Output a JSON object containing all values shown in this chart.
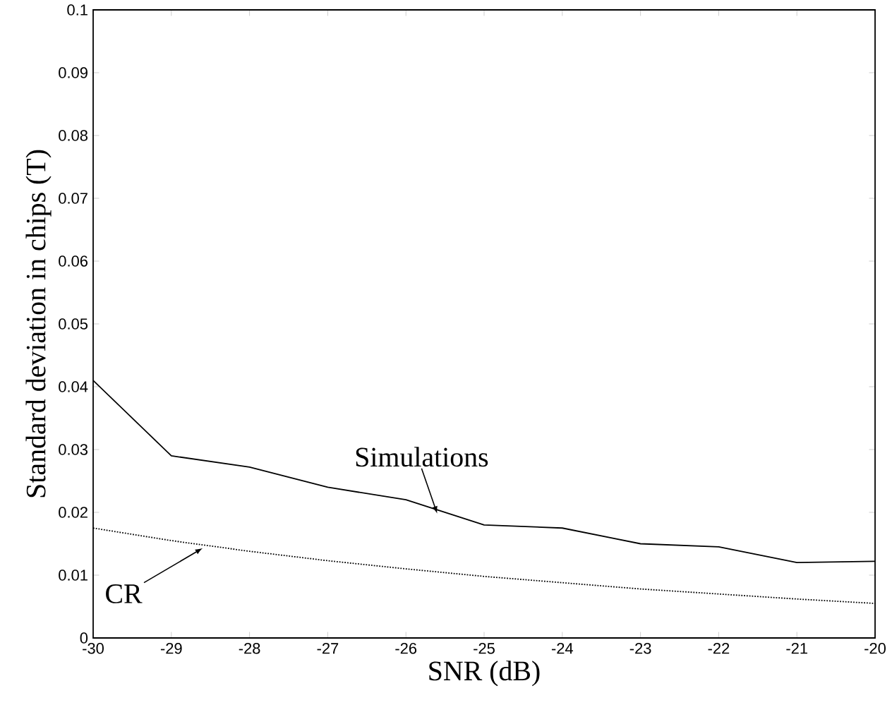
{
  "chart_data": {
    "type": "line",
    "xlabel": "SNR (dB)",
    "ylabel": "Standard deviation in chips (T)",
    "x": [
      -30,
      -29,
      -28,
      -27,
      -26,
      -25,
      -24,
      -23,
      -22,
      -21,
      -20
    ],
    "series": [
      {
        "color": "#000000",
        "line_style": "solid",
        "values": [
          0.041,
          0.029,
          0.0272,
          0.024,
          0.022,
          0.018,
          0.0175,
          0.015,
          0.0145,
          0.012,
          0.0122
        ]
      },
      {
        "color": "#000000",
        "line_style": "dotted",
        "values": [
          0.0175,
          0.0155,
          0.0138,
          0.0123,
          0.011,
          0.0098,
          0.0088,
          0.0078,
          0.007,
          0.0062,
          0.0055
        ]
      }
    ],
    "annotations": [
      {
        "text": "Simulations",
        "x": -25.6,
        "y": 0.0198
      },
      {
        "text": "CR",
        "x": -28.6,
        "y": 0.0143
      }
    ],
    "xlim": [
      -30,
      -20
    ],
    "ylim": [
      0,
      0.1
    ],
    "xticks": [
      -30,
      -29,
      -28,
      -27,
      -26,
      -25,
      -24,
      -23,
      -22,
      -21,
      -20
    ],
    "yticks": [
      0,
      0.01,
      0.02,
      0.03,
      0.04,
      0.05,
      0.06,
      0.07,
      0.08,
      0.09,
      0.1
    ],
    "grid": false,
    "marker": "none"
  }
}
